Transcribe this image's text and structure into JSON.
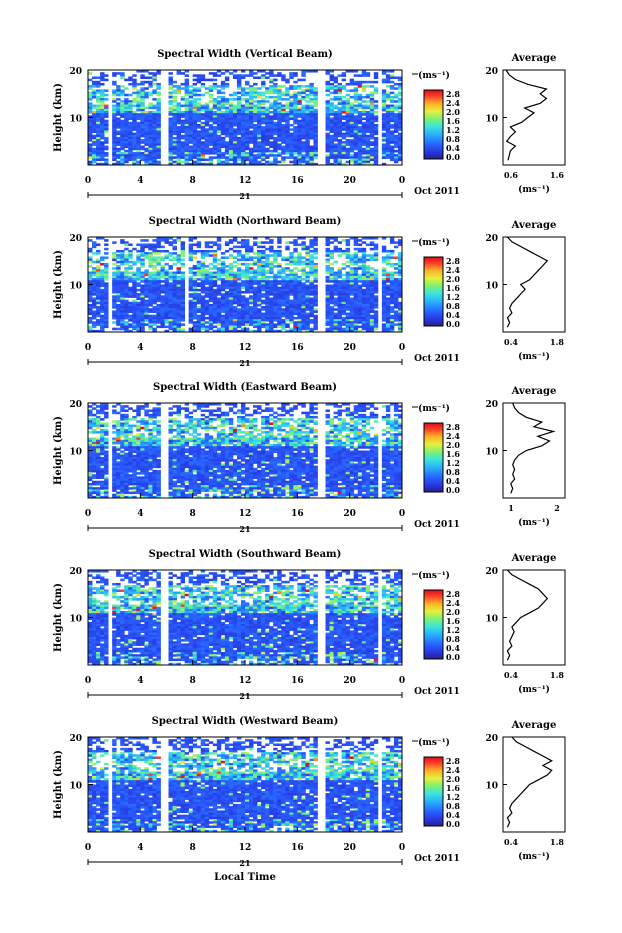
{
  "footer_xlabel": "Local Time",
  "chart_data": [
    {
      "type": "heatmap",
      "title": "Spectral Width (Vertical Beam)",
      "ylabel": "Height (km)",
      "xticks": [
        "0",
        "4",
        "8",
        "12",
        "16",
        "20",
        "0"
      ],
      "yticks": [
        "20",
        "10"
      ],
      "date_day": "21",
      "date_label": "Oct 2011",
      "colorbar": {
        "unit": "(ms⁻¹)",
        "ticks": [
          "2.8",
          "2.4",
          "2.0",
          "1.6",
          "1.2",
          "0.8",
          "0.4",
          "0.0"
        ],
        "range": [
          0,
          2.8
        ]
      },
      "gaps_hours": [
        [
          1.3,
          1.8
        ],
        [
          5.5,
          6.1
        ],
        [
          17.4,
          17.9
        ],
        [
          22.0,
          22.4
        ]
      ],
      "average": {
        "title": "Average",
        "xlabel": "(ms⁻¹)",
        "xticks": [
          "0.6",
          "1.6"
        ],
        "xlim": [
          0.6,
          1.6
        ],
        "yticks": [
          "20",
          "10"
        ],
        "ylim": [
          0,
          20
        ],
        "profile": [
          [
            0.68,
            1
          ],
          [
            0.7,
            2
          ],
          [
            0.72,
            3
          ],
          [
            0.8,
            4
          ],
          [
            0.66,
            5
          ],
          [
            0.72,
            6
          ],
          [
            0.8,
            7
          ],
          [
            0.72,
            8
          ],
          [
            0.9,
            9
          ],
          [
            1.0,
            10
          ],
          [
            1.1,
            11
          ],
          [
            0.95,
            12
          ],
          [
            1.2,
            13
          ],
          [
            1.3,
            14
          ],
          [
            1.2,
            15
          ],
          [
            1.3,
            16
          ],
          [
            1.0,
            17
          ],
          [
            0.8,
            18
          ],
          [
            0.7,
            19
          ],
          [
            0.65,
            20
          ]
        ]
      }
    },
    {
      "type": "heatmap",
      "title": "Spectral Width (Northward Beam)",
      "ylabel": "Height (km)",
      "xticks": [
        "0",
        "4",
        "8",
        "12",
        "16",
        "20",
        "0"
      ],
      "yticks": [
        "20",
        "10"
      ],
      "date_day": "21",
      "date_label": "Oct 2011",
      "colorbar": {
        "unit": "(ms⁻¹)",
        "ticks": [
          "2.8",
          "2.4",
          "2.0",
          "1.6",
          "1.2",
          "0.8",
          "0.4",
          "0.0"
        ],
        "range": [
          0,
          2.8
        ]
      },
      "gaps_hours": [
        [
          1.3,
          1.8
        ],
        [
          7.2,
          7.6
        ],
        [
          17.4,
          17.9
        ],
        [
          22.0,
          22.4
        ]
      ],
      "average": {
        "title": "Average",
        "xlabel": "(ms⁻¹)",
        "xticks": [
          "0.4",
          "1.8"
        ],
        "xlim": [
          0.4,
          1.8
        ],
        "yticks": [
          "20",
          "10"
        ],
        "ylim": [
          0,
          20
        ],
        "profile": [
          [
            0.5,
            1
          ],
          [
            0.55,
            2
          ],
          [
            0.5,
            3
          ],
          [
            0.6,
            4
          ],
          [
            0.55,
            5
          ],
          [
            0.6,
            6
          ],
          [
            0.7,
            7
          ],
          [
            0.8,
            8
          ],
          [
            0.9,
            9
          ],
          [
            0.8,
            10
          ],
          [
            1.0,
            11
          ],
          [
            1.1,
            12
          ],
          [
            1.2,
            13
          ],
          [
            1.3,
            14
          ],
          [
            1.4,
            15
          ],
          [
            1.2,
            16
          ],
          [
            1.0,
            17
          ],
          [
            0.8,
            18
          ],
          [
            0.6,
            19
          ],
          [
            0.5,
            20
          ]
        ]
      }
    },
    {
      "type": "heatmap",
      "title": "Spectral Width (Eastward Beam)",
      "ylabel": "Height (km)",
      "xticks": [
        "0",
        "4",
        "8",
        "12",
        "16",
        "20",
        "0"
      ],
      "yticks": [
        "20",
        "10"
      ],
      "date_day": "21",
      "date_label": "Oct 2011",
      "colorbar": {
        "unit": "(ms⁻¹)",
        "ticks": [
          "2.8",
          "2.4",
          "2.0",
          "1.6",
          "1.2",
          "0.8",
          "0.4",
          "0.0"
        ],
        "range": [
          0,
          2.8
        ]
      },
      "gaps_hours": [
        [
          1.3,
          1.8
        ],
        [
          5.5,
          6.1
        ],
        [
          17.4,
          17.9
        ],
        [
          22.0,
          22.4
        ]
      ],
      "average": {
        "title": "Average",
        "xlabel": "(ms⁻¹)",
        "xticks": [
          "1",
          "2"
        ],
        "xlim": [
          0.6,
          2.2
        ],
        "yticks": [
          "20",
          "10"
        ],
        "ylim": [
          0,
          20
        ],
        "profile": [
          [
            0.8,
            1
          ],
          [
            0.85,
            2
          ],
          [
            0.8,
            3
          ],
          [
            0.9,
            4
          ],
          [
            0.85,
            5
          ],
          [
            0.9,
            6
          ],
          [
            0.85,
            7
          ],
          [
            0.9,
            8
          ],
          [
            1.0,
            9
          ],
          [
            1.2,
            10
          ],
          [
            1.6,
            11
          ],
          [
            1.8,
            12
          ],
          [
            1.5,
            13
          ],
          [
            1.9,
            14
          ],
          [
            1.4,
            15
          ],
          [
            1.6,
            16
          ],
          [
            1.2,
            17
          ],
          [
            1.0,
            18
          ],
          [
            0.9,
            19
          ],
          [
            0.85,
            20
          ]
        ]
      }
    },
    {
      "type": "heatmap",
      "title": "Spectral Width (Southward Beam)",
      "ylabel": "Height (km)",
      "xticks": [
        "0",
        "4",
        "8",
        "12",
        "16",
        "20",
        "0"
      ],
      "yticks": [
        "20",
        "10"
      ],
      "date_day": "21",
      "date_label": "Oct 2011",
      "colorbar": {
        "unit": "(ms⁻¹)",
        "ticks": [
          "2.8",
          "2.4",
          "2.0",
          "1.6",
          "1.2",
          "0.8",
          "0.4",
          "0.0"
        ],
        "range": [
          0,
          2.8
        ]
      },
      "gaps_hours": [
        [
          1.3,
          1.8
        ],
        [
          5.5,
          6.1
        ],
        [
          17.4,
          17.9
        ],
        [
          22.0,
          22.4
        ]
      ],
      "average": {
        "title": "Average",
        "xlabel": "(ms⁻¹)",
        "xticks": [
          "0.4",
          "1.8"
        ],
        "xlim": [
          0.4,
          1.8
        ],
        "yticks": [
          "20",
          "10"
        ],
        "ylim": [
          0,
          20
        ],
        "profile": [
          [
            0.5,
            1
          ],
          [
            0.55,
            2
          ],
          [
            0.5,
            3
          ],
          [
            0.6,
            4
          ],
          [
            0.55,
            5
          ],
          [
            0.6,
            6
          ],
          [
            0.65,
            7
          ],
          [
            0.6,
            8
          ],
          [
            0.7,
            9
          ],
          [
            0.8,
            10
          ],
          [
            1.0,
            11
          ],
          [
            1.2,
            12
          ],
          [
            1.3,
            13
          ],
          [
            1.4,
            14
          ],
          [
            1.3,
            15
          ],
          [
            1.2,
            16
          ],
          [
            1.0,
            17
          ],
          [
            0.8,
            18
          ],
          [
            0.6,
            19
          ],
          [
            0.5,
            20
          ]
        ]
      }
    },
    {
      "type": "heatmap",
      "title": "Spectral Width (Westward Beam)",
      "ylabel": "Height (km)",
      "xticks": [
        "0",
        "4",
        "8",
        "12",
        "16",
        "20",
        "0"
      ],
      "yticks": [
        "20",
        "10"
      ],
      "date_day": "21",
      "date_label": "Oct 2011",
      "colorbar": {
        "unit": "(ms⁻¹)",
        "ticks": [
          "2.8",
          "2.4",
          "2.0",
          "1.6",
          "1.2",
          "0.8",
          "0.4",
          "0.0"
        ],
        "range": [
          0,
          2.8
        ]
      },
      "gaps_hours": [
        [
          1.3,
          1.8
        ],
        [
          5.5,
          6.1
        ],
        [
          17.4,
          17.9
        ],
        [
          22.0,
          22.4
        ]
      ],
      "average": {
        "title": "Average",
        "xlabel": "(ms⁻¹)",
        "xticks": [
          "0.4",
          "1.8"
        ],
        "xlim": [
          0.4,
          1.8
        ],
        "yticks": [
          "20",
          "10"
        ],
        "ylim": [
          0,
          20
        ],
        "profile": [
          [
            0.5,
            1
          ],
          [
            0.55,
            2
          ],
          [
            0.5,
            3
          ],
          [
            0.6,
            4
          ],
          [
            0.55,
            5
          ],
          [
            0.6,
            6
          ],
          [
            0.7,
            7
          ],
          [
            0.8,
            8
          ],
          [
            0.9,
            9
          ],
          [
            1.0,
            10
          ],
          [
            1.2,
            11
          ],
          [
            1.4,
            12
          ],
          [
            1.5,
            13
          ],
          [
            1.3,
            14
          ],
          [
            1.5,
            15
          ],
          [
            1.3,
            16
          ],
          [
            1.1,
            17
          ],
          [
            0.9,
            18
          ],
          [
            0.7,
            19
          ],
          [
            0.6,
            20
          ]
        ]
      }
    }
  ]
}
